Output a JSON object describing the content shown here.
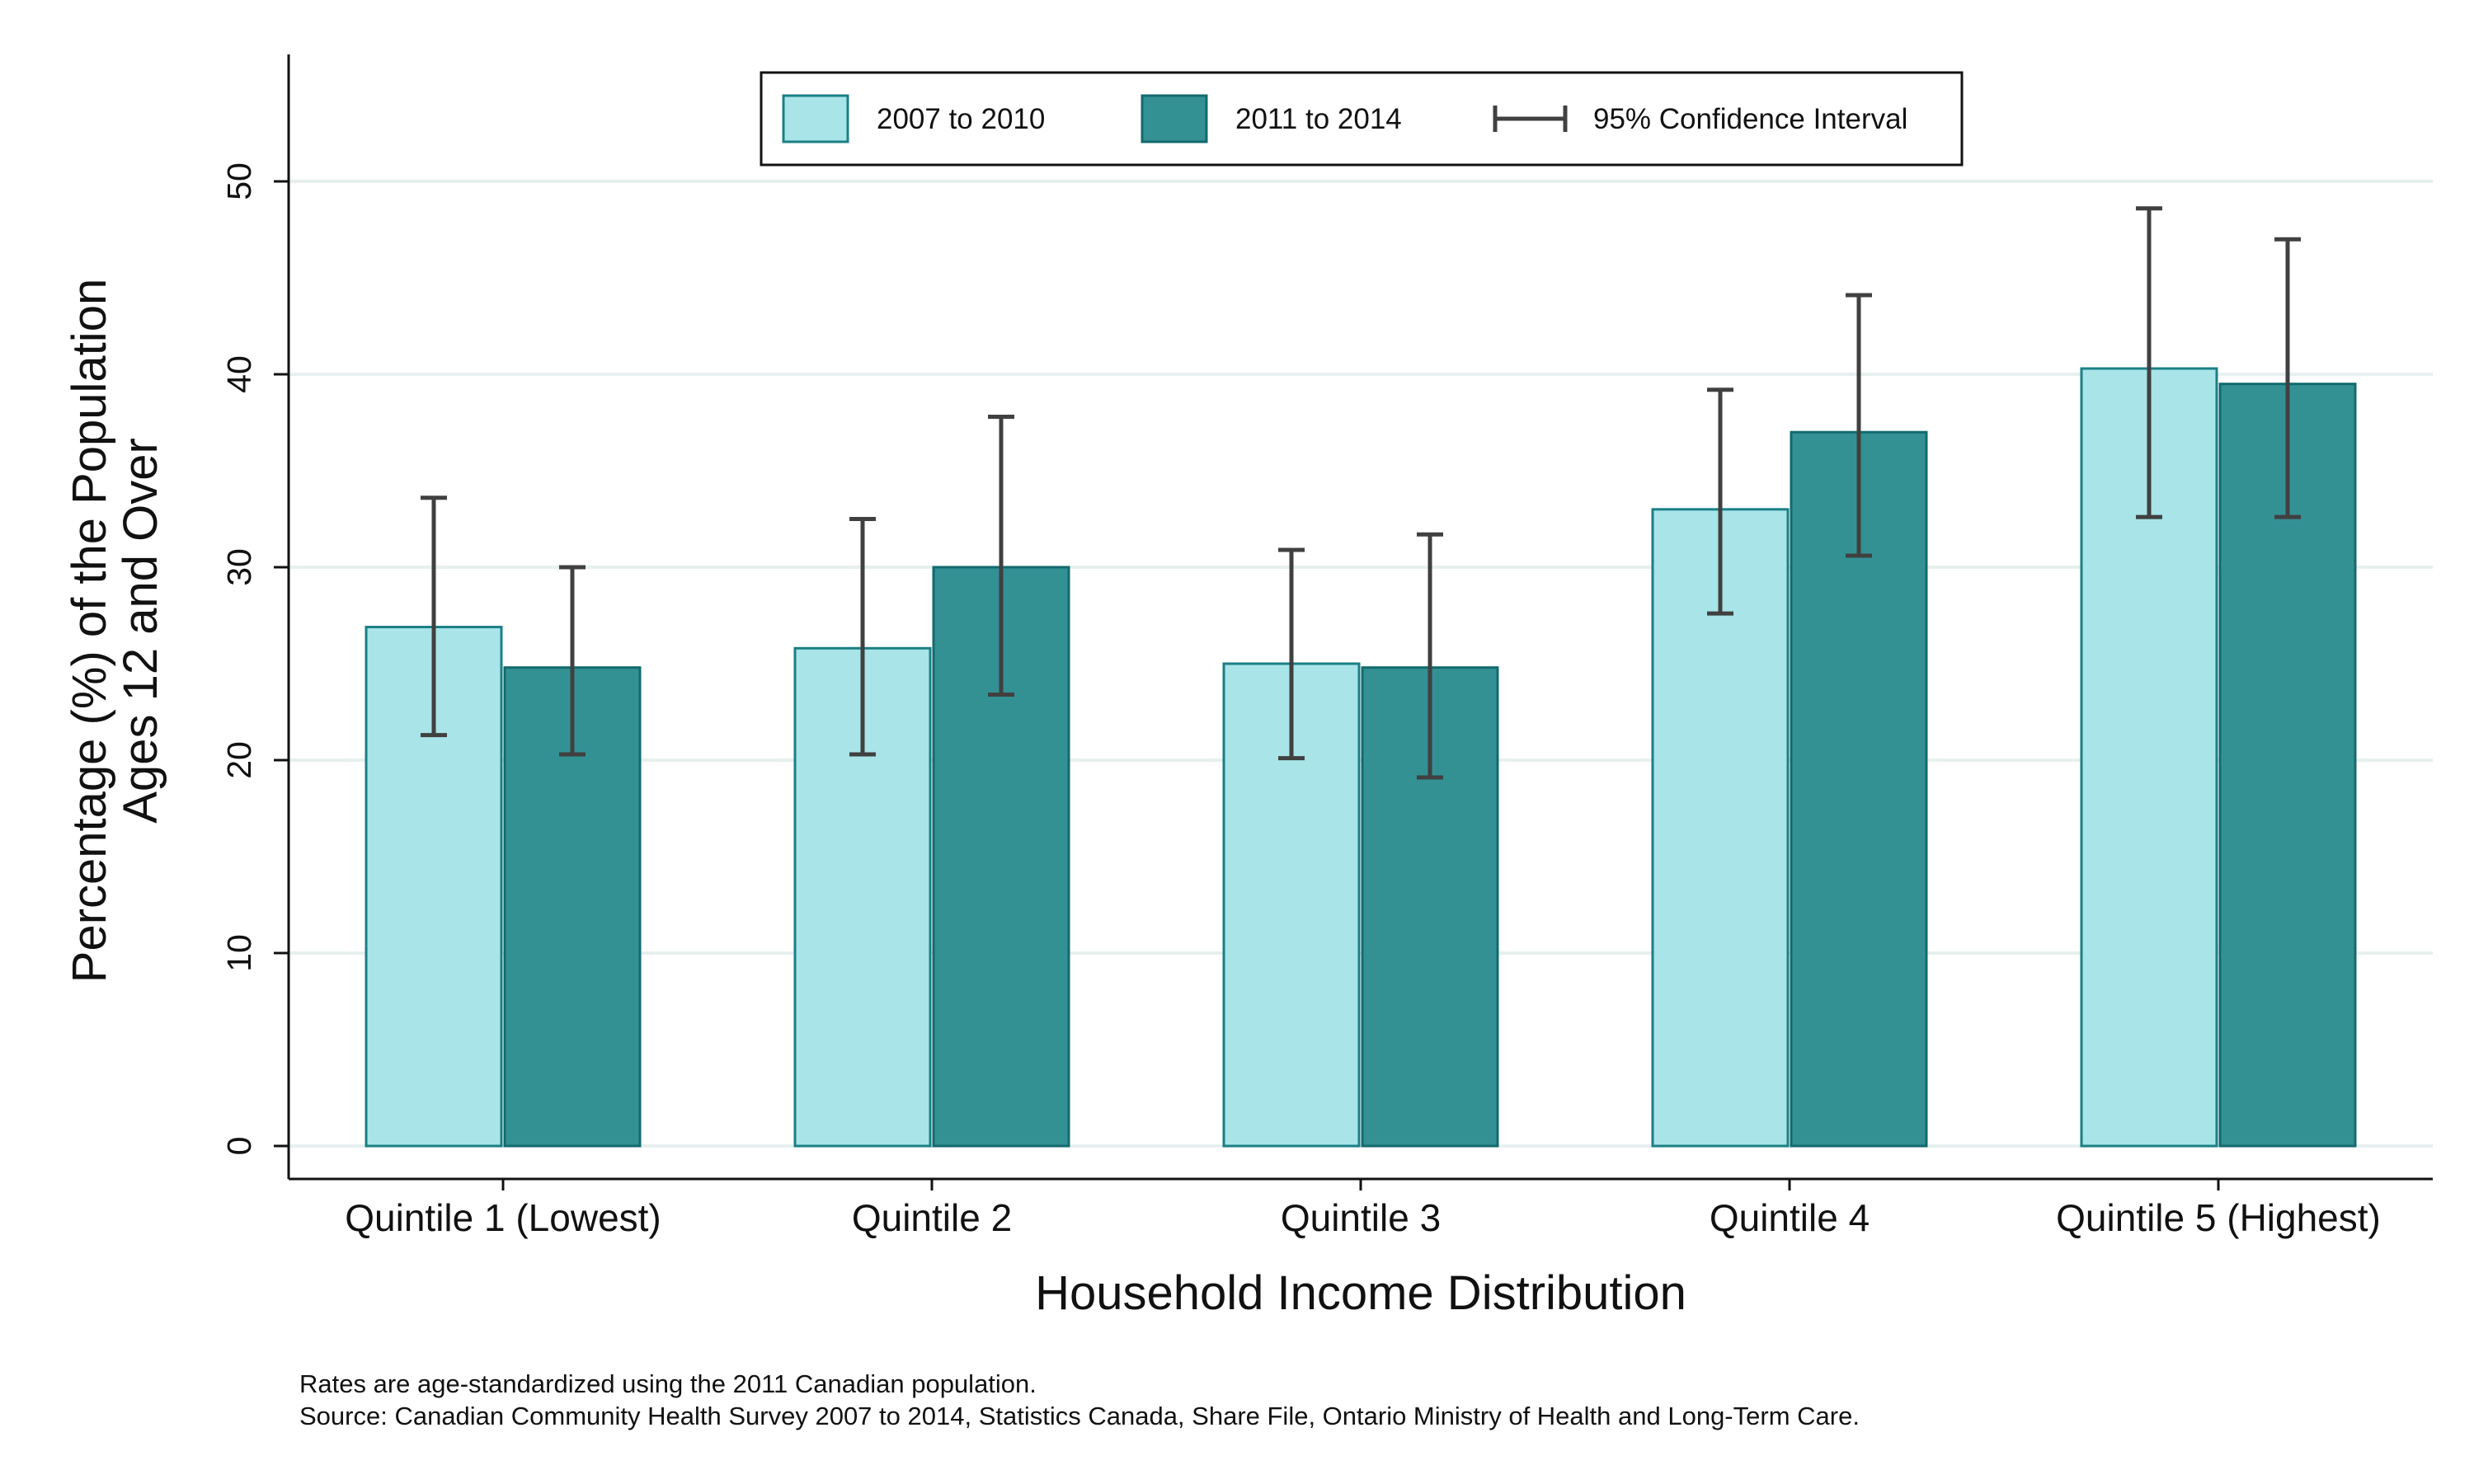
{
  "chart_data": {
    "type": "bar",
    "categories": [
      "Quintile 1 (Lowest)",
      "Quintile 2",
      "Quintile 3",
      "Quintile 4",
      "Quintile 5 (Highest)"
    ],
    "series": [
      {
        "name": "2007 to 2010",
        "color": "#a8e4e8",
        "edge_color": "#1b7f85",
        "values": [
          26.9,
          25.8,
          25.0,
          33.0,
          40.3
        ],
        "ci_low": [
          21.3,
          20.3,
          20.1,
          27.6,
          32.6
        ],
        "ci_high": [
          33.6,
          32.5,
          30.9,
          39.2,
          48.6
        ]
      },
      {
        "name": "2011 to 2014",
        "color": "#339194",
        "edge_color": "#136a6e",
        "values": [
          24.8,
          30.0,
          24.8,
          37.0,
          39.5
        ],
        "ci_low": [
          20.3,
          23.4,
          19.1,
          30.6,
          32.6
        ],
        "ci_high": [
          30.0,
          37.8,
          31.7,
          44.1,
          47.0
        ]
      }
    ],
    "xlabel": "Household Income Distribution",
    "ylabel_lines": [
      "Percentage (%) of the Population",
      "Ages 12 and Over"
    ],
    "ylim": [
      0,
      56
    ],
    "yticks": [
      0,
      10,
      20,
      30,
      40,
      50
    ],
    "grid": true,
    "error_bar_color": "#404040",
    "legend": {
      "placement": "top-center",
      "items": [
        "2007 to 2010",
        "2011 to 2014",
        "95% Confidence Interval"
      ]
    },
    "notes": [
      "Rates are age-standardized using the 2011 Canadian population.",
      "Source: Canadian Community Health Survey 2007 to 2014, Statistics Canada, Share File, Ontario Ministry of Health and Long-Term Care."
    ]
  }
}
